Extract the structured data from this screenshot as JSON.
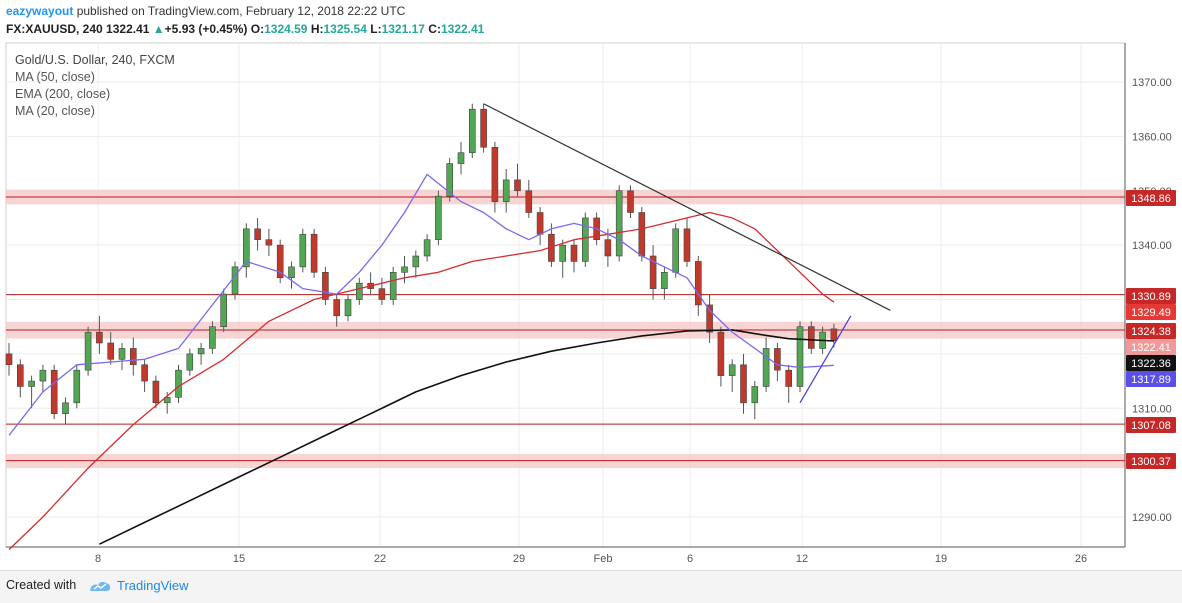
{
  "header": {
    "author": "eazywayout",
    "published_text": "published on TradingView.com, February 12, 2018 22:22 UTC",
    "symbol": "FX:XAUUSD, 240",
    "last": "1322.41",
    "change_arrow": "▲",
    "change": "+5.93 (+0.45%)",
    "o_label": "O:",
    "o_val": "1324.59",
    "h_label": "H:",
    "h_val": "1325.54",
    "l_label": "L:",
    "l_val": "1321.17",
    "c_label": "C:",
    "c_val": "1322.41"
  },
  "legend": {
    "title": "Gold/U.S. Dollar, 240, FXCM",
    "ma50": "MA (50, close)",
    "ema200": "EMA (200, close)",
    "ma20": "MA (20, close)"
  },
  "footer": {
    "created_with": "Created with",
    "brand": "TradingView"
  },
  "chart_data": {
    "type": "candlestick",
    "title": "Gold/U.S. Dollar, 240, FXCM",
    "ylim": [
      1285,
      1375
    ],
    "y_ticks": [
      1290,
      1300,
      1310,
      1320,
      1330,
      1340,
      1350,
      1360,
      1370
    ],
    "y_tick_labels": [
      "1290.00",
      "1300.00",
      "1310.00",
      "1320.00",
      "1330.00",
      "1340.00",
      "1350.00",
      "1360.00",
      "1370.00"
    ],
    "x_ticks": [
      "8",
      "15",
      "22",
      "29",
      "Feb",
      "6",
      "12",
      "19",
      "26"
    ],
    "grid": true,
    "colors": {
      "up": "#53a653",
      "down": "#c0392b",
      "ma50": "#d32f2f",
      "ema200": "#111111",
      "ma20": "#7b68ee",
      "zone": "#f4c7c7",
      "zone_line": "#b71c1c",
      "trend": "#333333",
      "support_trend": "#3f3fd6"
    },
    "horizontal_lines": [
      1348.86,
      1330.89,
      1324.38,
      1307.08,
      1300.37
    ],
    "zones": [
      [
        1347.5,
        1350.2
      ],
      [
        1322.8,
        1325.9
      ],
      [
        1299.0,
        1301.6
      ]
    ],
    "price_labels": [
      {
        "text": "1348.86",
        "value": 1348.86,
        "color": "#c62828"
      },
      {
        "text": "1330.89",
        "value": 1330.89,
        "color": "#c62828"
      },
      {
        "text": "1329.49",
        "value": 1329.49,
        "color": "#e53935"
      },
      {
        "text": "1324.38",
        "value": 1324.38,
        "color": "#c62828"
      },
      {
        "text": "1322.41",
        "value": 1322.41,
        "color": "#ef9a9a"
      },
      {
        "text": "1322.36",
        "value": 1322.36,
        "color": "#111111"
      },
      {
        "text": "1317.89",
        "value": 1317.89,
        "color": "#5c4ee8"
      },
      {
        "text": "1307.08",
        "value": 1307.08,
        "color": "#c62828"
      },
      {
        "text": "1300.37",
        "value": 1300.37,
        "color": "#c62828"
      }
    ],
    "price_lines_hidden_label": "1350.00",
    "series": [
      {
        "name": "MA (50, close)",
        "points": [
          [
            0,
            1284
          ],
          [
            3,
            1290
          ],
          [
            7,
            1299
          ],
          [
            11,
            1307
          ],
          [
            15,
            1314
          ],
          [
            19,
            1319
          ],
          [
            23,
            1326
          ],
          [
            27,
            1330
          ],
          [
            31,
            1332
          ],
          [
            35,
            1334
          ],
          [
            38,
            1335
          ],
          [
            41,
            1337
          ],
          [
            44,
            1338
          ],
          [
            47,
            1339
          ],
          [
            50,
            1341
          ],
          [
            53,
            1342
          ],
          [
            56,
            1343
          ],
          [
            58,
            1344
          ],
          [
            60,
            1345
          ],
          [
            62,
            1346
          ],
          [
            64,
            1345
          ],
          [
            66,
            1343
          ],
          [
            68,
            1339
          ],
          [
            70,
            1335
          ],
          [
            72,
            1331
          ],
          [
            73,
            1329.5
          ]
        ]
      },
      {
        "name": "EMA (200, close)",
        "points": [
          [
            8,
            1285
          ],
          [
            12,
            1289
          ],
          [
            16,
            1293
          ],
          [
            20,
            1297
          ],
          [
            24,
            1301
          ],
          [
            28,
            1305
          ],
          [
            32,
            1309
          ],
          [
            36,
            1313
          ],
          [
            40,
            1316
          ],
          [
            44,
            1318.5
          ],
          [
            48,
            1320.5
          ],
          [
            52,
            1322
          ],
          [
            56,
            1323.3
          ],
          [
            60,
            1324.2
          ],
          [
            64,
            1324.4
          ],
          [
            67,
            1323.4
          ],
          [
            69,
            1322.8
          ],
          [
            73,
            1322.36
          ]
        ]
      },
      {
        "name": "MA (20, close)",
        "points": [
          [
            0,
            1305
          ],
          [
            3,
            1313
          ],
          [
            6,
            1318
          ],
          [
            9,
            1318.5
          ],
          [
            12,
            1319
          ],
          [
            15,
            1321
          ],
          [
            18,
            1329
          ],
          [
            21,
            1337
          ],
          [
            24,
            1335
          ],
          [
            26,
            1332
          ],
          [
            29,
            1331
          ],
          [
            31,
            1335
          ],
          [
            33,
            1340
          ],
          [
            35,
            1346
          ],
          [
            37,
            1353
          ],
          [
            40,
            1348
          ],
          [
            42,
            1346
          ],
          [
            44,
            1343
          ],
          [
            46,
            1341
          ],
          [
            48,
            1343
          ],
          [
            50,
            1344
          ],
          [
            52,
            1343
          ],
          [
            54,
            1341
          ],
          [
            56,
            1338
          ],
          [
            58,
            1336
          ],
          [
            60,
            1334
          ],
          [
            62,
            1328
          ],
          [
            64,
            1324
          ],
          [
            66,
            1321
          ],
          [
            68,
            1318
          ],
          [
            70,
            1317.5
          ],
          [
            73,
            1317.89
          ]
        ]
      }
    ],
    "trend_lines": [
      {
        "name": "descending-resistance",
        "from": [
          42,
          1366
        ],
        "to": [
          78,
          1328
        ]
      },
      {
        "name": "ascending-support",
        "from": [
          70,
          1311
        ],
        "to": [
          74.5,
          1327
        ]
      }
    ],
    "candles": [
      [
        1320,
        1322,
        1316,
        1318
      ],
      [
        1318,
        1319,
        1312,
        1314
      ],
      [
        1314,
        1316,
        1310,
        1315
      ],
      [
        1315,
        1318,
        1313,
        1317
      ],
      [
        1317,
        1318,
        1308,
        1309
      ],
      [
        1309,
        1312,
        1307,
        1311
      ],
      [
        1311,
        1318,
        1310,
        1317
      ],
      [
        1317,
        1325,
        1316,
        1324
      ],
      [
        1324,
        1327,
        1320,
        1322
      ],
      [
        1322,
        1324,
        1318,
        1319
      ],
      [
        1319,
        1322,
        1317,
        1321
      ],
      [
        1321,
        1323,
        1316,
        1318
      ],
      [
        1318,
        1319,
        1313,
        1315
      ],
      [
        1315,
        1316,
        1310,
        1311
      ],
      [
        1311,
        1313,
        1309,
        1312
      ],
      [
        1312,
        1318,
        1311,
        1317
      ],
      [
        1317,
        1321,
        1316,
        1320
      ],
      [
        1320,
        1322,
        1318,
        1321
      ],
      [
        1321,
        1326,
        1320,
        1325
      ],
      [
        1325,
        1332,
        1324,
        1331
      ],
      [
        1331,
        1337,
        1330,
        1336
      ],
      [
        1336,
        1344,
        1334,
        1343
      ],
      [
        1343,
        1345,
        1339,
        1341
      ],
      [
        1341,
        1343,
        1338,
        1340
      ],
      [
        1340,
        1341,
        1333,
        1334
      ],
      [
        1334,
        1337,
        1332,
        1336
      ],
      [
        1336,
        1343,
        1335,
        1342
      ],
      [
        1342,
        1343,
        1334,
        1335
      ],
      [
        1335,
        1336,
        1329,
        1330
      ],
      [
        1330,
        1331,
        1325,
        1327
      ],
      [
        1327,
        1331,
        1326,
        1330
      ],
      [
        1330,
        1334,
        1329,
        1333
      ],
      [
        1333,
        1335,
        1331,
        1332
      ],
      [
        1332,
        1334,
        1329,
        1330
      ],
      [
        1330,
        1336,
        1329,
        1335
      ],
      [
        1335,
        1338,
        1333,
        1336
      ],
      [
        1336,
        1339,
        1334,
        1338
      ],
      [
        1338,
        1342,
        1337,
        1341
      ],
      [
        1341,
        1350,
        1340,
        1349
      ],
      [
        1349,
        1356,
        1348,
        1355
      ],
      [
        1355,
        1359,
        1353,
        1357
      ],
      [
        1357,
        1366,
        1356,
        1365
      ],
      [
        1365,
        1366,
        1357,
        1358
      ],
      [
        1358,
        1359,
        1346,
        1348
      ],
      [
        1348,
        1354,
        1346,
        1352
      ],
      [
        1352,
        1355,
        1349,
        1350
      ],
      [
        1350,
        1352,
        1345,
        1346
      ],
      [
        1346,
        1347,
        1340,
        1342
      ],
      [
        1342,
        1344,
        1336,
        1337
      ],
      [
        1337,
        1341,
        1334,
        1340
      ],
      [
        1340,
        1341,
        1335,
        1337
      ],
      [
        1337,
        1346,
        1336,
        1345
      ],
      [
        1345,
        1346,
        1340,
        1341
      ],
      [
        1341,
        1343,
        1336,
        1338
      ],
      [
        1338,
        1351,
        1337,
        1350
      ],
      [
        1350,
        1351,
        1345,
        1346
      ],
      [
        1346,
        1347,
        1337,
        1338
      ],
      [
        1338,
        1340,
        1330,
        1332
      ],
      [
        1332,
        1336,
        1330,
        1335
      ],
      [
        1335,
        1344,
        1334,
        1343
      ],
      [
        1343,
        1345,
        1336,
        1337
      ],
      [
        1337,
        1338,
        1327,
        1329
      ],
      [
        1329,
        1331,
        1322,
        1324
      ],
      [
        1324,
        1325,
        1314,
        1316
      ],
      [
        1316,
        1319,
        1313,
        1318
      ],
      [
        1318,
        1320,
        1309,
        1311
      ],
      [
        1311,
        1315,
        1308,
        1314
      ],
      [
        1314,
        1323,
        1313,
        1321
      ],
      [
        1321,
        1322,
        1315,
        1317
      ],
      [
        1317,
        1318,
        1311,
        1314
      ],
      [
        1314,
        1326,
        1313,
        1325
      ],
      [
        1325,
        1326,
        1320,
        1321
      ],
      [
        1321,
        1325,
        1320,
        1324
      ],
      [
        1324.59,
        1325.54,
        1321.17,
        1322.41
      ]
    ]
  }
}
